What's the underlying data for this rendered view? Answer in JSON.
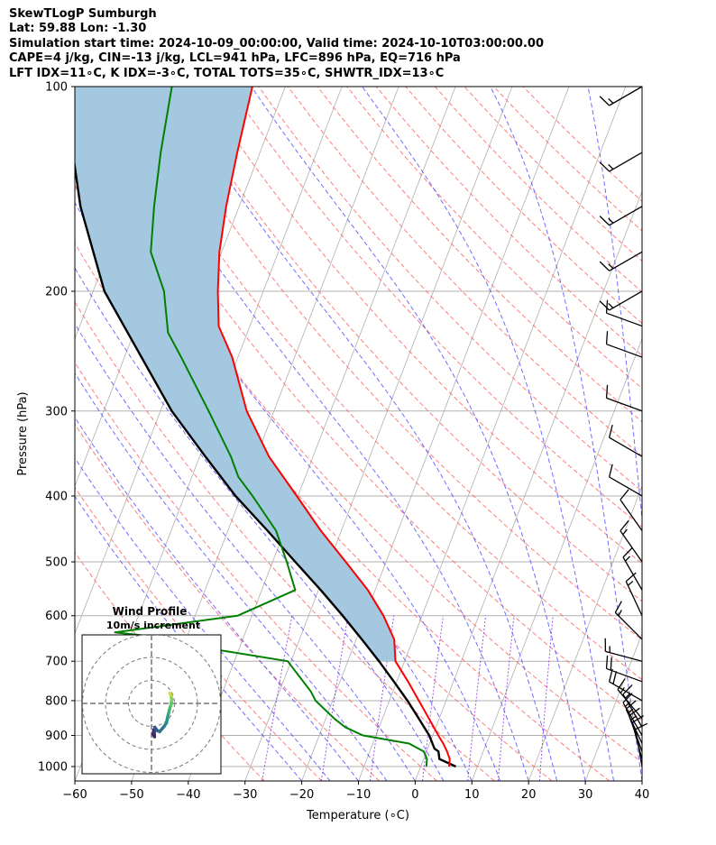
{
  "header": {
    "line1": "SkewTLogP Sumburgh",
    "line2": "Lat: 59.88   Lon: -1.30",
    "line3": "Simulation start time: 2024-10-09_00:00:00, Valid time: 2024-10-10T03:00:00.00",
    "line4": "CAPE=4 j/kg, CIN=-13 j/kg, LCL=941 hPa, LFC=896 hPa, EQ=716 hPa",
    "line5": "LFT IDX=11∘C, K IDX=-3∘C, TOTAL TOTS=35∘C, SHWTR_IDX=13∘C"
  },
  "chart_data": {
    "type": "line",
    "subtype": "skew-t log-p",
    "xlabel": "Temperature (∘C)",
    "ylabel": "Pressure (hPa)",
    "xlim": [
      -60,
      40
    ],
    "ylim": [
      1050,
      100
    ],
    "y_scale": "log",
    "x_ticks": [
      -60,
      -50,
      -40,
      -30,
      -20,
      -10,
      0,
      10,
      20,
      30,
      40
    ],
    "x_tick_labels": [
      "−60",
      "−50",
      "−40",
      "−30",
      "−20",
      "−10",
      "0",
      "10",
      "20",
      "30",
      "40"
    ],
    "y_ticks": [
      1000,
      900,
      800,
      700,
      600,
      500,
      400,
      300,
      200,
      100
    ],
    "y_tick_labels": [
      "1000",
      "900",
      "800",
      "700",
      "600",
      "500",
      "400",
      "300",
      "200",
      "100"
    ],
    "grid": true,
    "colors": {
      "temperature": "#ff0000",
      "dewpoint": "#008000",
      "parcel": "#000000",
      "cape_fill": "#a5c8e1",
      "dry_adiabat": "#ff6666",
      "moist_adiabat": "#5555ff",
      "mixing_ratio": "#8a2be2",
      "isotherm": "#b0b0b0"
    },
    "series": [
      {
        "key": "temperature",
        "pressure": [
          1000,
          975,
          950,
          925,
          900,
          850,
          800,
          750,
          700,
          650,
          600,
          550,
          500,
          450,
          400,
          350,
          300,
          250,
          225,
          200,
          175,
          150,
          125,
          100
        ],
        "values": [
          5.0,
          4.6,
          3.6,
          2.4,
          1.0,
          -1.8,
          -4.8,
          -8.0,
          -11.6,
          -13.3,
          -16.8,
          -21.3,
          -27.1,
          -33.6,
          -40.2,
          -47.8,
          -54.8,
          -61.0,
          -65.5,
          -68.0,
          -70.4,
          -72.3,
          -74.0,
          -75.8
        ]
      },
      {
        "key": "dewpoint",
        "pressure": [
          1000,
          975,
          950,
          925,
          900,
          875,
          850,
          800,
          775,
          700,
          675,
          650,
          635,
          600,
          550,
          500,
          450,
          400,
          375,
          350,
          300,
          250,
          230,
          200,
          175,
          150,
          125,
          100
        ],
        "values": [
          1.0,
          0.6,
          -0.5,
          -3.6,
          -12.3,
          -16.0,
          -18.5,
          -23.0,
          -24.5,
          -30.6,
          -43.0,
          -51.2,
          -63.0,
          -42.5,
          -34.1,
          -37.5,
          -41.5,
          -48.0,
          -51.8,
          -54.5,
          -61.5,
          -70.0,
          -74.0,
          -77.5,
          -82.5,
          -85.0,
          -87.5,
          -90.0
        ]
      },
      {
        "key": "parcel",
        "pressure": [
          1000,
          975,
          950,
          941,
          900,
          850,
          800,
          750,
          700,
          650,
          600,
          550,
          500,
          450,
          400,
          350,
          300,
          250,
          200,
          150,
          125,
          100
        ],
        "values": [
          6.2,
          2.8,
          2.1,
          1.2,
          -0.6,
          -3.6,
          -6.8,
          -10.5,
          -14.5,
          -19.0,
          -24.0,
          -29.6,
          -36.0,
          -43.0,
          -51.0,
          -59.0,
          -68.0,
          -77.0,
          -88.0,
          -98.0,
          -103.0,
          -109.0
        ]
      }
    ],
    "fill": {
      "label": "CAPE/CIN region between parcel and temperature",
      "from_pressure": 700,
      "to_pressure": 100
    },
    "wind_barbs": [
      {
        "p": 1000,
        "speed_kt": 12,
        "dir": 350
      },
      {
        "p": 975,
        "speed_kt": 14,
        "dir": 345
      },
      {
        "p": 950,
        "speed_kt": 15,
        "dir": 340
      },
      {
        "p": 925,
        "speed_kt": 15,
        "dir": 335
      },
      {
        "p": 900,
        "speed_kt": 16,
        "dir": 330
      },
      {
        "p": 875,
        "speed_kt": 16,
        "dir": 330
      },
      {
        "p": 850,
        "speed_kt": 18,
        "dir": 320
      },
      {
        "p": 800,
        "speed_kt": 20,
        "dir": 300
      },
      {
        "p": 750,
        "speed_kt": 20,
        "dir": 290
      },
      {
        "p": 700,
        "speed_kt": 18,
        "dir": 285
      },
      {
        "p": 650,
        "speed_kt": 16,
        "dir": 315
      },
      {
        "p": 600,
        "speed_kt": 15,
        "dir": 335
      },
      {
        "p": 550,
        "speed_kt": 15,
        "dir": 330
      },
      {
        "p": 500,
        "speed_kt": 15,
        "dir": 325
      },
      {
        "p": 450,
        "speed_kt": 12,
        "dir": 325
      },
      {
        "p": 400,
        "speed_kt": 12,
        "dir": 300
      },
      {
        "p": 350,
        "speed_kt": 12,
        "dir": 300
      },
      {
        "p": 300,
        "speed_kt": 12,
        "dir": 290
      },
      {
        "p": 250,
        "speed_kt": 12,
        "dir": 290
      },
      {
        "p": 225,
        "speed_kt": 12,
        "dir": 290
      },
      {
        "p": 200,
        "speed_kt": 15,
        "dir": 240
      },
      {
        "p": 175,
        "speed_kt": 15,
        "dir": 240
      },
      {
        "p": 150,
        "speed_kt": 15,
        "dir": 240
      },
      {
        "p": 125,
        "speed_kt": 15,
        "dir": 240
      },
      {
        "p": 100,
        "speed_kt": 15,
        "dir": 240
      }
    ],
    "hodograph": {
      "title": "Wind Profile",
      "subtitle": "10m/s increment",
      "rings_ms": [
        10,
        20,
        30
      ],
      "u": [
        1.0,
        0.8,
        1.3,
        1.2,
        1.5,
        2.5,
        3.5,
        5.5,
        6.5,
        7.0,
        7.5,
        8.0,
        8.5,
        8.8,
        8.5,
        8.2,
        8.0
      ],
      "v": [
        -11.5,
        -13.5,
        -14.5,
        -12.5,
        -10.5,
        -11.8,
        -12.3,
        -10.0,
        -8.5,
        -6.0,
        -4.0,
        -2.0,
        -0.5,
        1.5,
        3.5,
        4.0,
        4.5
      ]
    }
  }
}
